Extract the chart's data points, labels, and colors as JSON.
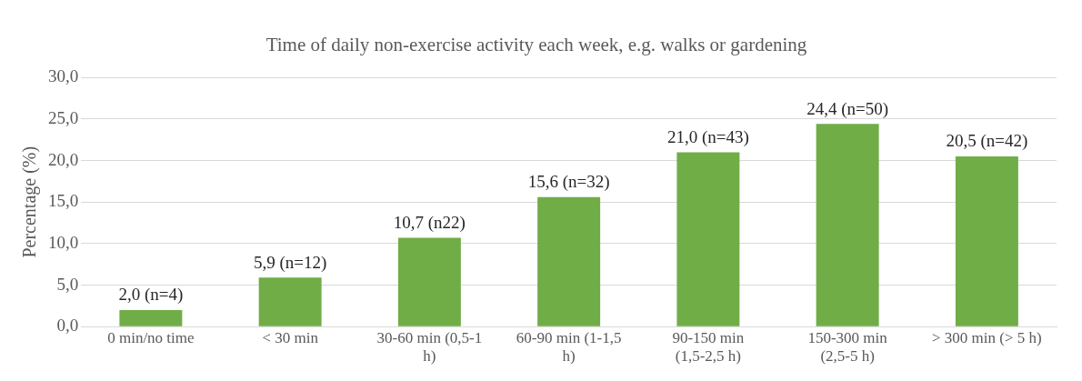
{
  "chart_data": {
    "type": "bar",
    "title": "Time of daily non-exercise activity each week, e.g. walks or gardening",
    "ylabel": "Percentage (%)",
    "categories": [
      "0 min/no time",
      "< 30 min",
      "30-60 min (0,5-1 h)",
      "60-90 min (1-1,5 h)",
      "90-150 min (1,5-2,5 h)",
      "150-300 min (2,5-5 h)",
      "> 300 min (> 5 h)"
    ],
    "values": [
      2.0,
      5.9,
      10.7,
      15.6,
      21.0,
      24.4,
      20.5
    ],
    "value_labels": [
      "2,0 (n=4)",
      "5,9 (n=12)",
      "10,7 (n22)",
      "15,6 (n=32)",
      "21,0 (n=43)",
      "24,4 (n=50)",
      "20,5 (n=42)"
    ],
    "color": "#70ad47",
    "ylim": [
      0,
      30
    ],
    "yticks": [
      {
        "value": 0,
        "label": "0,0"
      },
      {
        "value": 5,
        "label": "5,0"
      },
      {
        "value": 10,
        "label": "10,0"
      },
      {
        "value": 15,
        "label": "15,0"
      },
      {
        "value": 20,
        "label": "20,0"
      },
      {
        "value": 25,
        "label": "25,0"
      },
      {
        "value": 30,
        "label": "30,0"
      }
    ],
    "grid": "y",
    "legend": false
  }
}
